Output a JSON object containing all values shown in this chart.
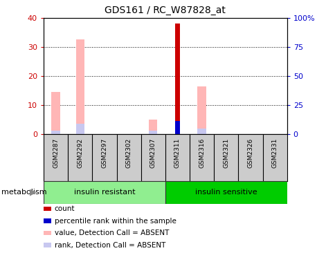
{
  "title": "GDS161 / RC_W87828_at",
  "samples": [
    "GSM2287",
    "GSM2292",
    "GSM2297",
    "GSM2302",
    "GSM2307",
    "GSM2311",
    "GSM2316",
    "GSM2321",
    "GSM2326",
    "GSM2331"
  ],
  "groups": [
    {
      "label": "insulin resistant",
      "indices": [
        0,
        1,
        2,
        3,
        4
      ],
      "color": "#90ee90"
    },
    {
      "label": "insulin sensitive",
      "indices": [
        5,
        6,
        7,
        8,
        9
      ],
      "color": "#00cc00"
    }
  ],
  "group_label": "metabolism",
  "left_ylim": [
    0,
    40
  ],
  "right_ylim": [
    0,
    100
  ],
  "left_yticks": [
    0,
    10,
    20,
    30,
    40
  ],
  "right_yticks": [
    0,
    25,
    50,
    75,
    100
  ],
  "right_yticklabels": [
    "0",
    "25",
    "50",
    "75",
    "100%"
  ],
  "count_values": [
    0,
    0,
    0,
    0,
    0,
    38,
    0,
    0,
    0,
    0
  ],
  "rank_values": [
    0,
    0,
    0,
    0,
    0,
    11.5,
    0,
    0,
    0,
    0
  ],
  "value_absent": [
    14.5,
    32.5,
    0,
    0,
    5.0,
    0,
    16.5,
    0,
    0,
    0
  ],
  "rank_absent": [
    3.0,
    9.0,
    0,
    0,
    3.0,
    0,
    5.0,
    0,
    0,
    0
  ],
  "count_color": "#cc0000",
  "rank_color": "#0000cc",
  "value_absent_color": "#ffb6b6",
  "rank_absent_color": "#c8c8f0",
  "legend_items": [
    {
      "color": "#cc0000",
      "label": "count"
    },
    {
      "color": "#0000cc",
      "label": "percentile rank within the sample"
    },
    {
      "color": "#ffb6b6",
      "label": "value, Detection Call = ABSENT"
    },
    {
      "color": "#c8c8f0",
      "label": "rank, Detection Call = ABSENT"
    }
  ],
  "bg_color": "#ffffff",
  "left_tick_color": "#cc0000",
  "right_tick_color": "#0000cc",
  "label_box_color": "#cccccc",
  "group_border_color": "#333333"
}
